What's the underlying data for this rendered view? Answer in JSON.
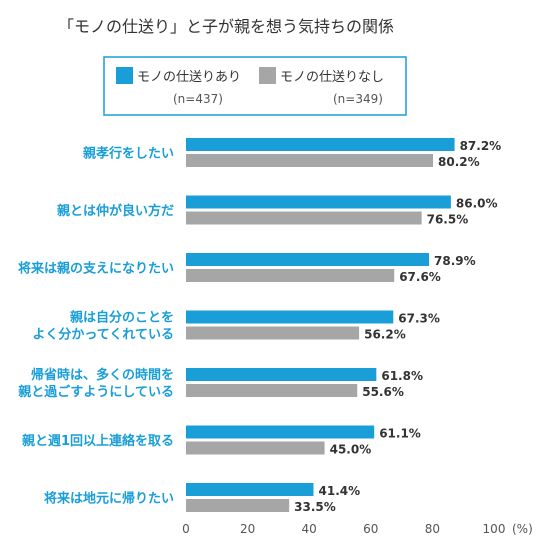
{
  "colors": {
    "series1": "#1a9ed8",
    "series2": "#a6a6a6",
    "category_text": "#1a9ed8",
    "legend_border": "#1a9ed8"
  },
  "chart_data": {
    "type": "bar",
    "orientation": "horizontal",
    "title": "「モノの仕送り」と子が親を想う気持ちの関係",
    "unit_label": "(%)",
    "xlim": [
      0,
      100
    ],
    "ticks": [
      0,
      20,
      40,
      60,
      80,
      100
    ],
    "grid": false,
    "legend_position": "top",
    "categories": [
      [
        "親孝行をしたい"
      ],
      [
        "親とは仲が良い方だ"
      ],
      [
        "将来は親の支えになりたい"
      ],
      [
        "親は自分のことを",
        "よく分かってくれている"
      ],
      [
        "帰省時は、多くの時間を",
        "親と過ごすようにしている"
      ],
      [
        "親と週1回以上連絡を取る"
      ],
      [
        "将来は地元に帰りたい"
      ]
    ],
    "series": [
      {
        "name": "モノの仕送りあり",
        "n_label": "(n=437)",
        "values": [
          87.2,
          86.0,
          78.9,
          67.3,
          61.8,
          61.1,
          41.4
        ]
      },
      {
        "name": "モノの仕送りなし",
        "n_label": "(n=349)",
        "values": [
          80.2,
          76.5,
          67.6,
          56.2,
          55.6,
          45.0,
          33.5
        ]
      }
    ]
  }
}
